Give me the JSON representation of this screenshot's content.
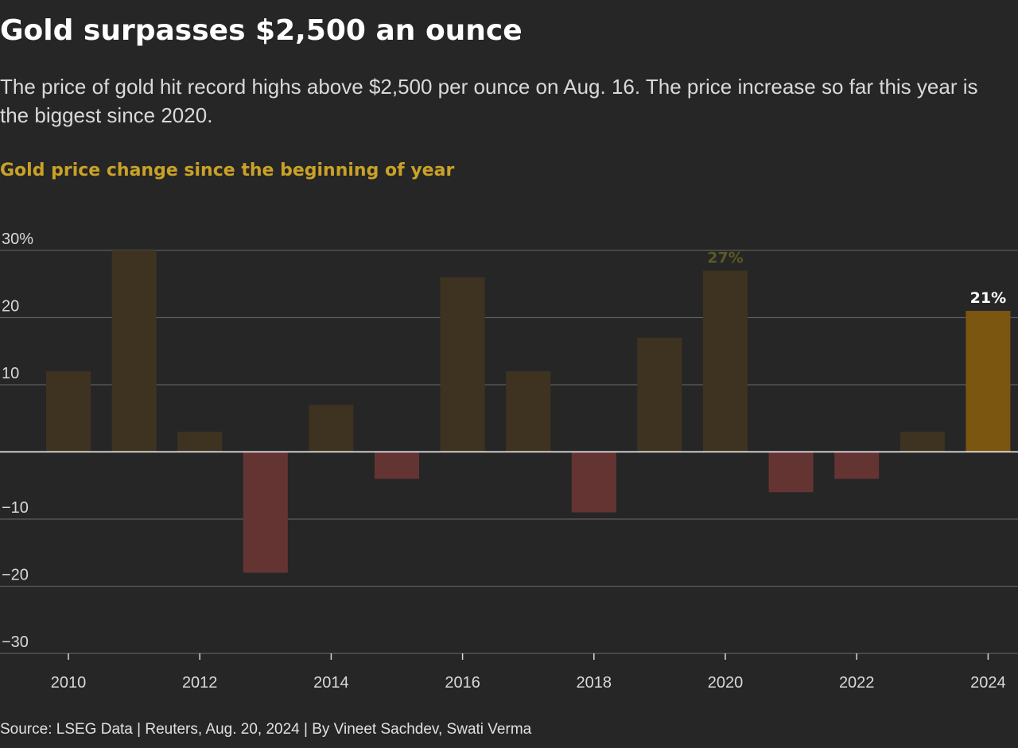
{
  "header": {
    "title": "Gold surpasses $2,500 an ounce",
    "subtitle": "The price of gold hit record highs above $2,500 per ounce on Aug. 16. The price increase so far this year is the biggest since 2020.",
    "chart_title": "Gold price change since the beginning of year"
  },
  "footer": {
    "source": "Source: LSEG Data | Reuters, Aug. 20, 2024 | By Vineet Sachdev, Swati Verma"
  },
  "colors": {
    "positive_bar": "#3e3320",
    "negative_bar": "#643433",
    "highlight_bar": "#7a5611",
    "annotation_2020": "#5a5a22",
    "annotation_2024": "#ffffff",
    "grid": "#5e5e5e",
    "zero_line": "#ffffff",
    "axis_text": "#d9d9d9"
  },
  "chart_data": {
    "type": "bar",
    "categories": [
      "2010",
      "2011",
      "2012",
      "2013",
      "2014",
      "2015",
      "2016",
      "2017",
      "2018",
      "2019",
      "2020",
      "2021",
      "2022",
      "2023",
      "2024"
    ],
    "values": [
      12,
      30,
      3,
      -18,
      7,
      -4,
      26,
      12,
      -9,
      17,
      27,
      -6,
      -4,
      3,
      21
    ],
    "ylim": [
      -30,
      30
    ],
    "yticks": [
      30,
      20,
      10,
      -10,
      -20,
      -30
    ],
    "ytick_labels": [
      "30%",
      "20",
      "10",
      "−10",
      "−20",
      "−30"
    ],
    "xtick_labels": [
      "2010",
      "2012",
      "2014",
      "2016",
      "2018",
      "2020",
      "2022",
      "2024"
    ],
    "annotations": [
      {
        "category": "2020",
        "label": "27%"
      },
      {
        "category": "2024",
        "label": "21%"
      }
    ],
    "highlight": "2024",
    "grid": true
  }
}
